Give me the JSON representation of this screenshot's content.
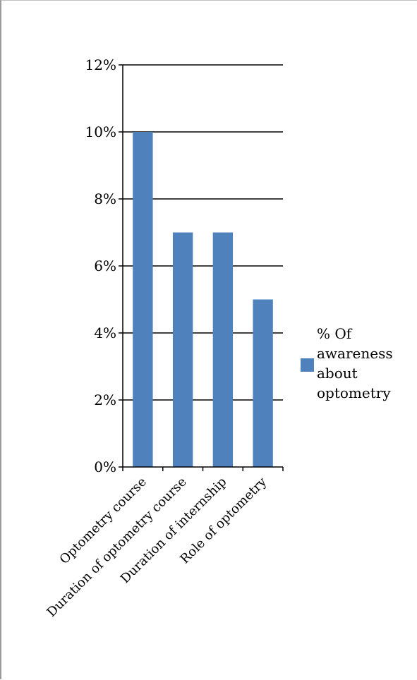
{
  "chart_data": {
    "type": "bar",
    "categories": [
      "Optometry course",
      "Duration of optometry course",
      "Duration of internship",
      "Role of optometry"
    ],
    "series": [
      {
        "name": "% Of awareness about optometry",
        "values": [
          10,
          7,
          7,
          5
        ],
        "color": "#4f81bd"
      }
    ],
    "y_unit": "%",
    "ylim": [
      0,
      12
    ],
    "y_ticks": [
      "0%",
      "2%",
      "4%",
      "6%",
      "8%",
      "10%",
      "12%"
    ],
    "grid": true,
    "legend_position": "right"
  }
}
